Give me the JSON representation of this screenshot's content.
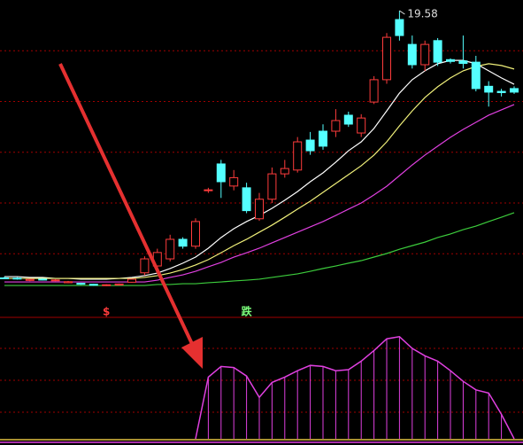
{
  "chart_data": {
    "type": "candlestick",
    "up_color": "#ff3c3c",
    "down_color": "#54ffff",
    "ylim": [
      7.6,
      20
    ],
    "yticks": [
      10,
      12,
      14,
      16,
      18
    ],
    "grid": true,
    "candles": {
      "open": [
        9.05,
        9.04,
        8.95,
        9.0,
        8.94,
        8.86,
        8.84,
        8.8,
        8.75,
        8.77,
        8.88,
        9.25,
        9.52,
        9.8,
        10.57,
        10.3,
        12.5,
        13.54,
        12.67,
        12.6,
        11.38,
        12.15,
        13.15,
        13.3,
        14.48,
        14.83,
        14.83,
        15.46,
        14.76,
        15.98,
        16.86,
        19.23,
        18.25,
        17.45,
        18.4,
        17.65,
        17.6,
        17.55,
        16.6,
        16.4,
        16.51
      ],
      "high": [
        9.1,
        9.08,
        9.02,
        9.03,
        9.0,
        8.93,
        8.86,
        8.82,
        8.8,
        8.83,
        9.02,
        9.9,
        10.2,
        10.75,
        10.65,
        11.4,
        12.6,
        13.7,
        13.3,
        12.8,
        12.4,
        13.4,
        13.7,
        14.6,
        14.8,
        15.1,
        15.7,
        15.6,
        15.5,
        17.0,
        18.7,
        19.58,
        18.6,
        18.4,
        18.5,
        17.7,
        18.6,
        17.8,
        16.8,
        16.5,
        16.6
      ],
      "low": [
        9.0,
        8.98,
        8.92,
        8.95,
        8.92,
        8.84,
        8.78,
        8.74,
        8.73,
        8.75,
        8.86,
        9.15,
        9.4,
        9.7,
        10.2,
        10.2,
        12.4,
        12.2,
        12.5,
        11.6,
        11.3,
        12.0,
        13.0,
        13.2,
        13.9,
        14.1,
        14.6,
        15.0,
        14.6,
        15.9,
        16.7,
        18.4,
        17.3,
        17.2,
        17.4,
        17.5,
        17.3,
        16.4,
        15.8,
        16.2,
        16.3
      ],
      "close": [
        9.02,
        9.01,
        8.99,
        8.97,
        8.97,
        8.9,
        8.8,
        8.76,
        8.78,
        8.81,
        9.0,
        9.8,
        10.05,
        10.57,
        10.3,
        11.27,
        12.52,
        12.84,
        13.0,
        11.7,
        12.15,
        13.15,
        13.36,
        14.41,
        14.06,
        14.24,
        15.25,
        15.11,
        15.35,
        16.86,
        18.53,
        18.6,
        17.45,
        18.25,
        17.55,
        17.58,
        17.5,
        16.51,
        16.37,
        16.35,
        16.37
      ]
    },
    "series": [
      {
        "color": "#ffffff",
        "values": [
          9.1,
          9.1,
          9.07,
          9.07,
          9.03,
          9.03,
          9.0,
          9.0,
          9.0,
          9.03,
          9.07,
          9.14,
          9.24,
          9.42,
          9.63,
          9.87,
          10.22,
          10.64,
          10.99,
          11.27,
          11.51,
          11.79,
          12.11,
          12.45,
          12.84,
          13.19,
          13.61,
          14.06,
          14.41,
          14.94,
          15.63,
          16.33,
          16.86,
          17.21,
          17.49,
          17.62,
          17.62,
          17.49,
          17.21,
          16.93,
          16.68
        ]
      },
      {
        "color": "#f0f07a",
        "values": [
          9.03,
          9.03,
          9.03,
          9.03,
          9.03,
          9.03,
          9.03,
          9.03,
          9.03,
          9.03,
          9.03,
          9.07,
          9.14,
          9.24,
          9.38,
          9.56,
          9.77,
          10.04,
          10.32,
          10.57,
          10.85,
          11.13,
          11.44,
          11.76,
          12.07,
          12.42,
          12.77,
          13.12,
          13.47,
          13.89,
          14.41,
          15.04,
          15.63,
          16.16,
          16.58,
          16.93,
          17.21,
          17.38,
          17.49,
          17.42,
          17.28
        ]
      },
      {
        "color": "#e040e0",
        "values": [
          8.89,
          8.89,
          8.89,
          8.89,
          8.89,
          8.89,
          8.89,
          8.89,
          8.89,
          8.89,
          8.89,
          8.89,
          8.96,
          9.07,
          9.17,
          9.31,
          9.49,
          9.66,
          9.87,
          10.04,
          10.22,
          10.43,
          10.64,
          10.85,
          11.06,
          11.27,
          11.51,
          11.76,
          12.0,
          12.32,
          12.66,
          13.08,
          13.5,
          13.89,
          14.24,
          14.59,
          14.9,
          15.18,
          15.46,
          15.67,
          15.88
        ]
      },
      {
        "color": "#3ccc3c",
        "values": [
          8.75,
          8.75,
          8.75,
          8.75,
          8.75,
          8.75,
          8.75,
          8.75,
          8.75,
          8.75,
          8.75,
          8.75,
          8.79,
          8.79,
          8.82,
          8.82,
          8.86,
          8.89,
          8.93,
          8.96,
          9.0,
          9.07,
          9.14,
          9.21,
          9.31,
          9.42,
          9.52,
          9.63,
          9.73,
          9.87,
          10.01,
          10.18,
          10.32,
          10.46,
          10.64,
          10.78,
          10.95,
          11.09,
          11.27,
          11.44,
          11.62
        ]
      }
    ],
    "indicator": {
      "color": "#e040e0",
      "ylim": [
        0,
        100
      ],
      "yticks": [
        25,
        55,
        85
      ],
      "values": [
        null,
        null,
        null,
        null,
        null,
        null,
        null,
        null,
        null,
        null,
        null,
        null,
        null,
        null,
        null,
        0,
        58,
        68,
        67,
        59,
        39,
        53,
        58,
        64,
        69,
        68,
        64,
        65,
        73,
        83,
        94,
        96,
        85,
        78,
        73,
        64,
        54,
        46,
        43,
        23,
        0
      ]
    },
    "annotations": [
      {
        "text": "19.58",
        "x": 31
      },
      {
        "text": "$",
        "x": 8,
        "color": "#ff3c3c"
      },
      {
        "text": "跌",
        "x": 19,
        "color": "#7cff7c"
      }
    ]
  }
}
